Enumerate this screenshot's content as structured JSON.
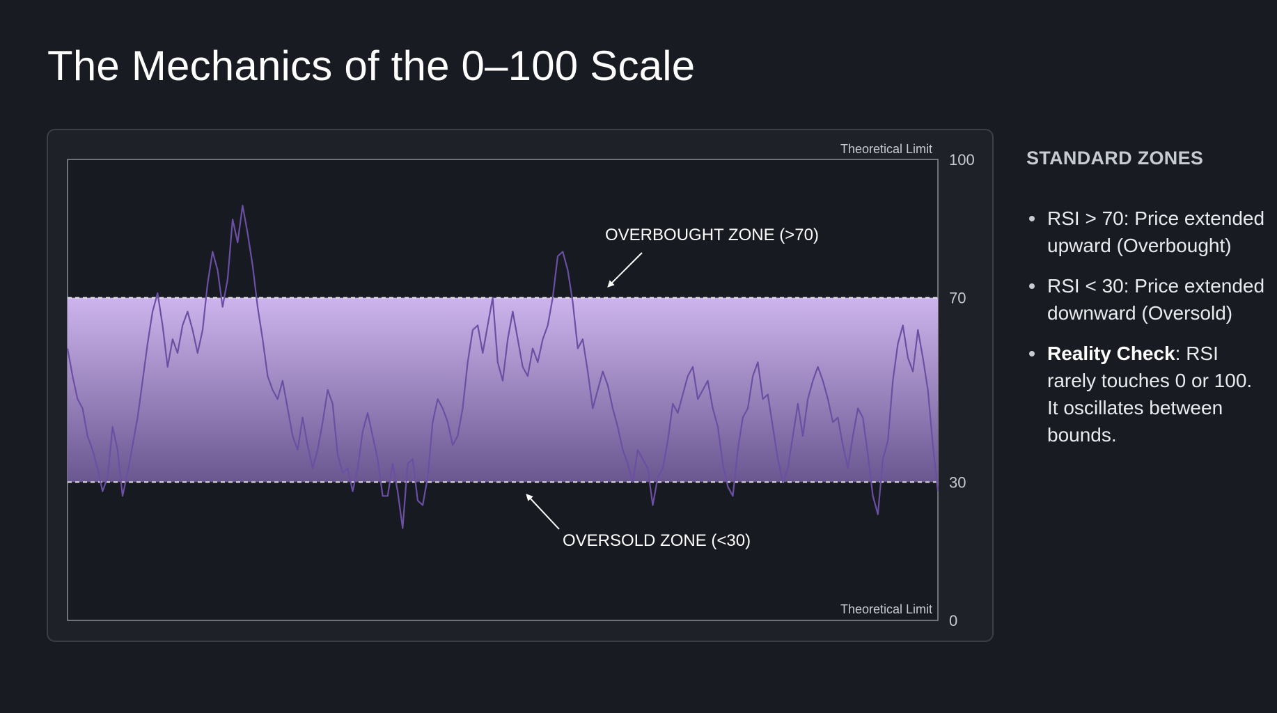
{
  "slide": {
    "title": "The Mechanics of the 0–100 Scale"
  },
  "sidebar": {
    "heading": "STANDARD ZONES",
    "bullets": [
      {
        "bold": "",
        "text": "RSI > 70: Price extended upward (Overbought)"
      },
      {
        "bold": "",
        "text": "RSI < 30: Price extended downward (Oversold)"
      },
      {
        "bold": "Reality Check",
        "text": ": RSI rarely touches 0 or 100. It oscillates between bounds."
      }
    ]
  },
  "colors": {
    "background": "#181b21",
    "band_top": "#cdb4ec",
    "band_bottom": "#6a5790",
    "line": "#6b4fa3",
    "threshold_line": "#e6e6e6"
  },
  "chart_data": {
    "type": "line",
    "ylim": [
      0,
      100
    ],
    "yticks": [
      "100",
      "70",
      "30",
      "0"
    ],
    "upper_threshold": 70,
    "lower_threshold": 30,
    "top_limit_label": "Theoretical Limit",
    "bottom_limit_label": "Theoretical Limit",
    "annotations": {
      "overbought": "OVERBOUGHT ZONE (>70)",
      "oversold": "OVERSOLD ZONE (<30)"
    },
    "series": [
      {
        "values": [
          59,
          53,
          48,
          46,
          40,
          37,
          33,
          28,
          31,
          42,
          37,
          27,
          32,
          38,
          44,
          52,
          60,
          67,
          71,
          64,
          55,
          61,
          58,
          64,
          67,
          63,
          58,
          63,
          73,
          80,
          76,
          68,
          74,
          87,
          82,
          90,
          84,
          77,
          68,
          61,
          53,
          50,
          48,
          52,
          46,
          40,
          37,
          44,
          38,
          33,
          37,
          43,
          50,
          47,
          36,
          32,
          33,
          28,
          33,
          41,
          45,
          40,
          35,
          27,
          27,
          34,
          28,
          20,
          34,
          35,
          26,
          25,
          31,
          43,
          48,
          46,
          43,
          38,
          40,
          46,
          56,
          63,
          64,
          58,
          64,
          70,
          56,
          52,
          61,
          67,
          61,
          55,
          53,
          59,
          56,
          61,
          64,
          70,
          79,
          80,
          76,
          69,
          59,
          61,
          54,
          46,
          50,
          54,
          51,
          46,
          42,
          37,
          34,
          30,
          37,
          35,
          33,
          25,
          31,
          33,
          39,
          47,
          45,
          49,
          53,
          55,
          48,
          50,
          52,
          46,
          42,
          34,
          29,
          27,
          37,
          44,
          46,
          53,
          56,
          48,
          49,
          42,
          35,
          30,
          33,
          40,
          47,
          40,
          48,
          52,
          55,
          52,
          48,
          43,
          44,
          38,
          33,
          40,
          46,
          44,
          36,
          27,
          23,
          35,
          39,
          52,
          60,
          64,
          57,
          54,
          63,
          57,
          50,
          38,
          28
        ]
      }
    ]
  }
}
